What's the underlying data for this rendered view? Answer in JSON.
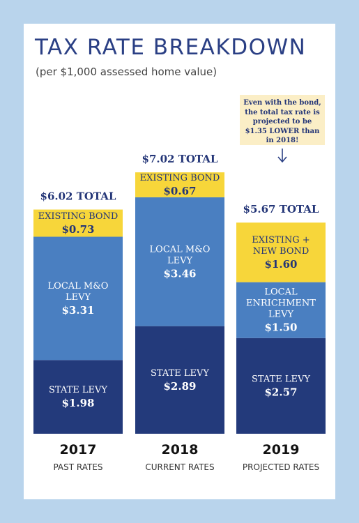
{
  "title": "TAX RATE BREAKDOWN",
  "subtitle": "(per $1,000 assessed home value)",
  "callout": "Even with the bond, the total tax rate is projected to be $1.35 LOWER than in 2018!",
  "colors": {
    "background": "#b9d4ec",
    "state_levy": "#233a7b",
    "local_levy": "#4a7fc1",
    "bond": "#f7d63a",
    "label_on_dark": "#ffffff",
    "label_on_bond": "#233577"
  },
  "chart_data": {
    "type": "bar",
    "stacked": true,
    "categories": [
      "2017",
      "2018",
      "2019"
    ],
    "category_sublabels": [
      "PAST RATES",
      "CURRENT RATES",
      "PROJECTED RATES"
    ],
    "totals": [
      "$6.02 TOTAL",
      "$7.02 TOTAL",
      "$5.67 TOTAL"
    ],
    "segments": [
      [
        {
          "label": "STATE LEVY",
          "value_text": "$1.98",
          "value": 1.98,
          "color": "#233a7b"
        },
        {
          "label": "LOCAL M&O LEVY",
          "value_text": "$3.31",
          "value": 3.31,
          "color": "#4a7fc1"
        },
        {
          "label": "EXISTING BOND",
          "value_text": "$0.73",
          "value": 0.73,
          "color": "#f7d63a"
        }
      ],
      [
        {
          "label": "STATE LEVY",
          "value_text": "$2.89",
          "value": 2.89,
          "color": "#233a7b"
        },
        {
          "label": "LOCAL M&O LEVY",
          "value_text": "$3.46",
          "value": 3.46,
          "color": "#4a7fc1"
        },
        {
          "label": "EXISTING BOND",
          "value_text": "$0.67",
          "value": 0.67,
          "color": "#f7d63a"
        }
      ],
      [
        {
          "label": "STATE LEVY",
          "value_text": "$2.57",
          "value": 2.57,
          "color": "#233a7b"
        },
        {
          "label": "LOCAL ENRICHMENT LEVY",
          "value_text": "$1.50",
          "value": 1.5,
          "color": "#4a7fc1"
        },
        {
          "label": "EXISTING + NEW BOND",
          "value_text": "$1.60",
          "value": 1.6,
          "color": "#f7d63a"
        }
      ]
    ]
  }
}
